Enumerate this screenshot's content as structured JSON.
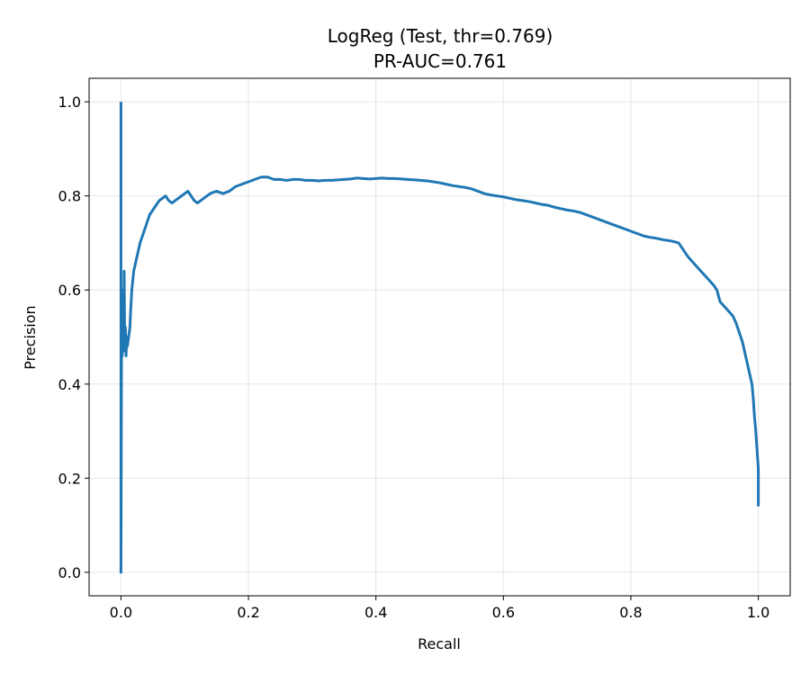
{
  "chart_data": {
    "type": "line",
    "title": "LogReg (Test, thr=0.769)",
    "subtitle": "PR-AUC=0.761",
    "xlabel": "Recall",
    "ylabel": "Precision",
    "xlim": [
      -0.05,
      1.05
    ],
    "ylim": [
      -0.05,
      1.05
    ],
    "xticks": [
      0.0,
      0.2,
      0.4,
      0.6,
      0.8,
      1.0
    ],
    "xtick_labels": [
      "0.0",
      "0.2",
      "0.4",
      "0.6",
      "0.8",
      "1.0"
    ],
    "yticks": [
      0.0,
      0.2,
      0.4,
      0.6,
      0.8,
      1.0
    ],
    "ytick_labels": [
      "0.0",
      "0.2",
      "0.4",
      "0.6",
      "0.8",
      "1.0"
    ],
    "grid": true,
    "series": [
      {
        "color": "#1f77b4",
        "x": [
          0.0,
          0.0,
          0.001,
          0.002,
          0.003,
          0.004,
          0.005,
          0.006,
          0.007,
          0.008,
          0.009,
          0.01,
          0.012,
          0.014,
          0.015,
          0.017,
          0.02,
          0.025,
          0.03,
          0.035,
          0.04,
          0.045,
          0.05,
          0.055,
          0.06,
          0.065,
          0.07,
          0.075,
          0.08,
          0.085,
          0.09,
          0.095,
          0.1,
          0.105,
          0.11,
          0.115,
          0.12,
          0.125,
          0.13,
          0.14,
          0.15,
          0.16,
          0.17,
          0.18,
          0.19,
          0.2,
          0.21,
          0.22,
          0.23,
          0.24,
          0.25,
          0.26,
          0.27,
          0.28,
          0.29,
          0.3,
          0.31,
          0.32,
          0.33,
          0.34,
          0.35,
          0.36,
          0.37,
          0.38,
          0.39,
          0.4,
          0.41,
          0.42,
          0.43,
          0.44,
          0.45,
          0.46,
          0.47,
          0.48,
          0.49,
          0.5,
          0.51,
          0.52,
          0.53,
          0.54,
          0.55,
          0.56,
          0.57,
          0.58,
          0.59,
          0.6,
          0.61,
          0.62,
          0.63,
          0.64,
          0.65,
          0.66,
          0.67,
          0.68,
          0.69,
          0.7,
          0.71,
          0.72,
          0.73,
          0.74,
          0.75,
          0.76,
          0.77,
          0.78,
          0.79,
          0.8,
          0.81,
          0.82,
          0.83,
          0.84,
          0.85,
          0.86,
          0.87,
          0.875,
          0.88,
          0.89,
          0.9,
          0.91,
          0.92,
          0.93,
          0.935,
          0.94,
          0.95,
          0.96,
          0.965,
          0.97,
          0.975,
          0.98,
          0.985,
          0.99,
          0.992,
          0.994,
          0.996,
          0.998,
          1.0,
          1.0
        ],
        "y": [
          1.0,
          0.0,
          0.55,
          0.46,
          0.6,
          0.48,
          0.64,
          0.47,
          0.52,
          0.46,
          0.5,
          0.48,
          0.5,
          0.52,
          0.55,
          0.6,
          0.64,
          0.67,
          0.7,
          0.72,
          0.74,
          0.76,
          0.77,
          0.78,
          0.79,
          0.795,
          0.8,
          0.79,
          0.785,
          0.79,
          0.795,
          0.8,
          0.805,
          0.81,
          0.8,
          0.79,
          0.785,
          0.79,
          0.795,
          0.805,
          0.81,
          0.805,
          0.81,
          0.82,
          0.825,
          0.83,
          0.835,
          0.84,
          0.84,
          0.835,
          0.835,
          0.833,
          0.835,
          0.835,
          0.833,
          0.833,
          0.832,
          0.833,
          0.833,
          0.834,
          0.835,
          0.836,
          0.838,
          0.837,
          0.836,
          0.837,
          0.838,
          0.837,
          0.837,
          0.836,
          0.835,
          0.834,
          0.833,
          0.832,
          0.83,
          0.828,
          0.825,
          0.822,
          0.82,
          0.818,
          0.815,
          0.81,
          0.805,
          0.802,
          0.8,
          0.798,
          0.795,
          0.792,
          0.79,
          0.788,
          0.785,
          0.782,
          0.78,
          0.776,
          0.773,
          0.77,
          0.768,
          0.765,
          0.76,
          0.755,
          0.75,
          0.745,
          0.74,
          0.735,
          0.73,
          0.725,
          0.72,
          0.715,
          0.712,
          0.71,
          0.707,
          0.705,
          0.702,
          0.7,
          0.69,
          0.67,
          0.655,
          0.64,
          0.625,
          0.61,
          0.6,
          0.575,
          0.56,
          0.545,
          0.53,
          0.51,
          0.49,
          0.46,
          0.43,
          0.4,
          0.37,
          0.33,
          0.3,
          0.26,
          0.22,
          0.14
        ]
      }
    ]
  }
}
